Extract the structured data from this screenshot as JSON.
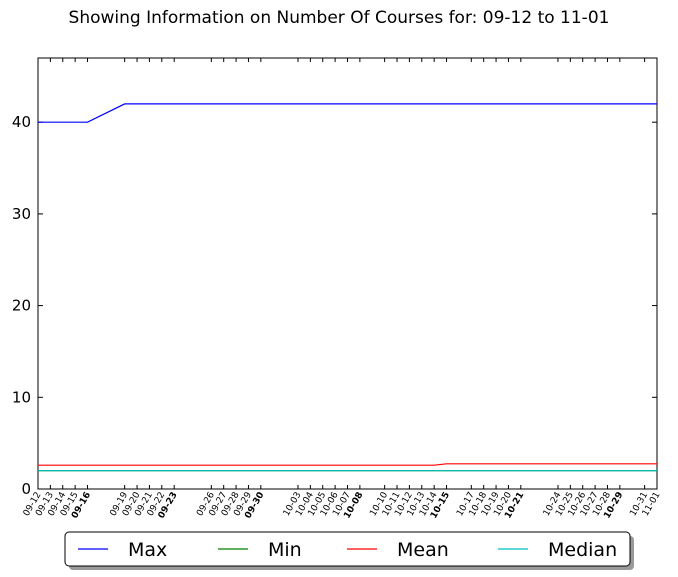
{
  "chart_data": {
    "type": "line",
    "title": "Showing Information on Number Of Courses for: 09-12 to 11-01",
    "xlabel": "",
    "ylabel": "",
    "ylim": [
      0,
      47
    ],
    "y_ticks": [
      0,
      10,
      20,
      30,
      40
    ],
    "x_start": "2015-09-12",
    "x_end": "2015-11-01",
    "x_ticks": [
      "09-12",
      "09-13",
      "09-14",
      "09-15",
      "09-16",
      "09-19",
      "09-20",
      "09-21",
      "09-22",
      "09-23",
      "09-26",
      "09-27",
      "09-28",
      "09-29",
      "09-30",
      "10-03",
      "10-04",
      "10-05",
      "10-06",
      "10-07",
      "10-08",
      "10-10",
      "10-11",
      "10-12",
      "10-13",
      "10-14",
      "10-15",
      "10-17",
      "10-18",
      "10-19",
      "10-20",
      "10-21",
      "10-24",
      "10-25",
      "10-26",
      "10-27",
      "10-28",
      "10-29",
      "10-31",
      "11-01"
    ],
    "bold_ticks": [
      "09-16",
      "09-23",
      "09-30",
      "10-08",
      "10-15",
      "10-21",
      "10-29"
    ],
    "grid": false,
    "legend_placement": "bottom-center",
    "series": [
      {
        "name": "Max",
        "color": "#0000ff",
        "points": [
          [
            "09-12",
            40
          ],
          [
            "09-16",
            40
          ],
          [
            "09-19",
            42
          ],
          [
            "11-01",
            42
          ]
        ]
      },
      {
        "name": "Min",
        "color": "#008000",
        "points": [
          [
            "09-12",
            2
          ],
          [
            "11-01",
            2
          ]
        ]
      },
      {
        "name": "Mean",
        "color": "#ff0000",
        "points": [
          [
            "09-12",
            2.6
          ],
          [
            "10-14",
            2.6
          ],
          [
            "10-15",
            2.75
          ],
          [
            "11-01",
            2.75
          ]
        ]
      },
      {
        "name": "Median",
        "color": "#00bfbf",
        "points": [
          [
            "09-12",
            2
          ],
          [
            "11-01",
            2
          ]
        ]
      }
    ]
  }
}
